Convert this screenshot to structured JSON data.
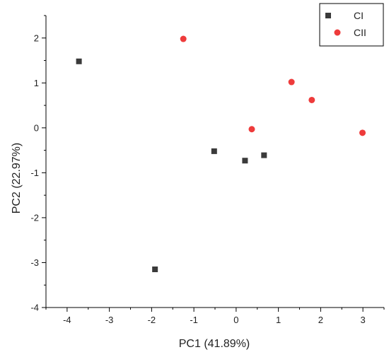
{
  "chart_data": {
    "type": "scatter",
    "title": "",
    "xlabel": "PC1 (41.89%)",
    "ylabel": "PC2 (22.97%)",
    "xlim": [
      -4.5,
      3.5
    ],
    "ylim": [
      -4,
      2.5
    ],
    "xticks": [
      -4,
      -3,
      -2,
      -1,
      0,
      1,
      2,
      3
    ],
    "yticks": [
      -4,
      -3,
      -2,
      -1,
      0,
      1,
      2
    ],
    "grid": false,
    "legend_position": "top-right",
    "series": [
      {
        "name": "CI",
        "marker": "square",
        "color": "#3a3a3a",
        "points": [
          {
            "x": -3.72,
            "y": 1.48
          },
          {
            "x": -1.92,
            "y": -3.15
          },
          {
            "x": -0.52,
            "y": -0.52
          },
          {
            "x": 0.21,
            "y": -0.73
          },
          {
            "x": 0.66,
            "y": -0.61
          }
        ]
      },
      {
        "name": "CII",
        "marker": "circle",
        "color": "#ee3b3b",
        "points": [
          {
            "x": -1.25,
            "y": 1.98
          },
          {
            "x": 0.37,
            "y": -0.03
          },
          {
            "x": 1.31,
            "y": 1.02
          },
          {
            "x": 1.79,
            "y": 0.62
          },
          {
            "x": 2.99,
            "y": -0.11
          }
        ]
      }
    ]
  }
}
